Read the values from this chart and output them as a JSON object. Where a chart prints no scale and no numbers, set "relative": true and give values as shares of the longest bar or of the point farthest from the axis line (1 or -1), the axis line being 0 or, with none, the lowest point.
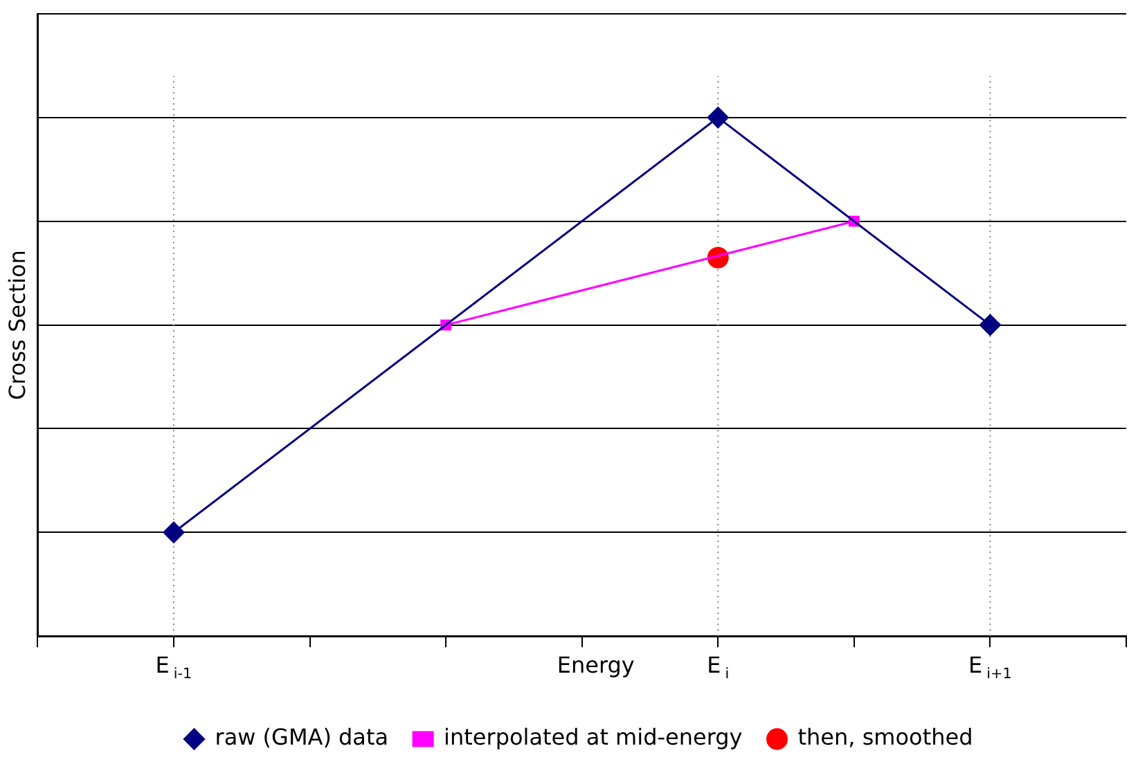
{
  "chart_data": {
    "type": "line",
    "xlabel": "Energy",
    "ylabel": "Cross Section",
    "relative": true,
    "categories": [
      null,
      "E$_{i-1}$",
      null,
      null,
      null,
      "E$_{i}$",
      null,
      "E$_{i+1}$",
      null
    ],
    "series": [
      {
        "name": "raw (GMA) data",
        "type": "line",
        "color": "#000080",
        "marker": "diamond",
        "values": [
          null,
          0.2,
          null,
          null,
          null,
          1,
          null,
          0.6,
          null
        ]
      },
      {
        "name": "interpolated at mid-energy",
        "type": "line",
        "color": "#ff00ff",
        "marker": "square",
        "values": [
          null,
          null,
          null,
          0.6,
          null,
          null,
          0.8,
          null,
          null
        ]
      },
      {
        "name": "then, smoothed",
        "type": "scatter",
        "color": "#ff0000",
        "marker": "circle",
        "values": [
          null,
          null,
          null,
          null,
          null,
          0.73,
          null,
          null,
          null
        ]
      }
    ],
    "ref_lines": [
      {
        "axis": "x",
        "value": "E$_{i-1}$",
        "line_style": "dotted",
        "color": "#808080"
      },
      {
        "axis": "x",
        "value": "E$_{i}$",
        "line_style": "dotted",
        "color": "#808080"
      },
      {
        "axis": "x",
        "value": "E$_{i+1}$",
        "line_style": "dotted",
        "color": "#808080"
      }
    ],
    "grid": "y",
    "legend": "bottom"
  }
}
